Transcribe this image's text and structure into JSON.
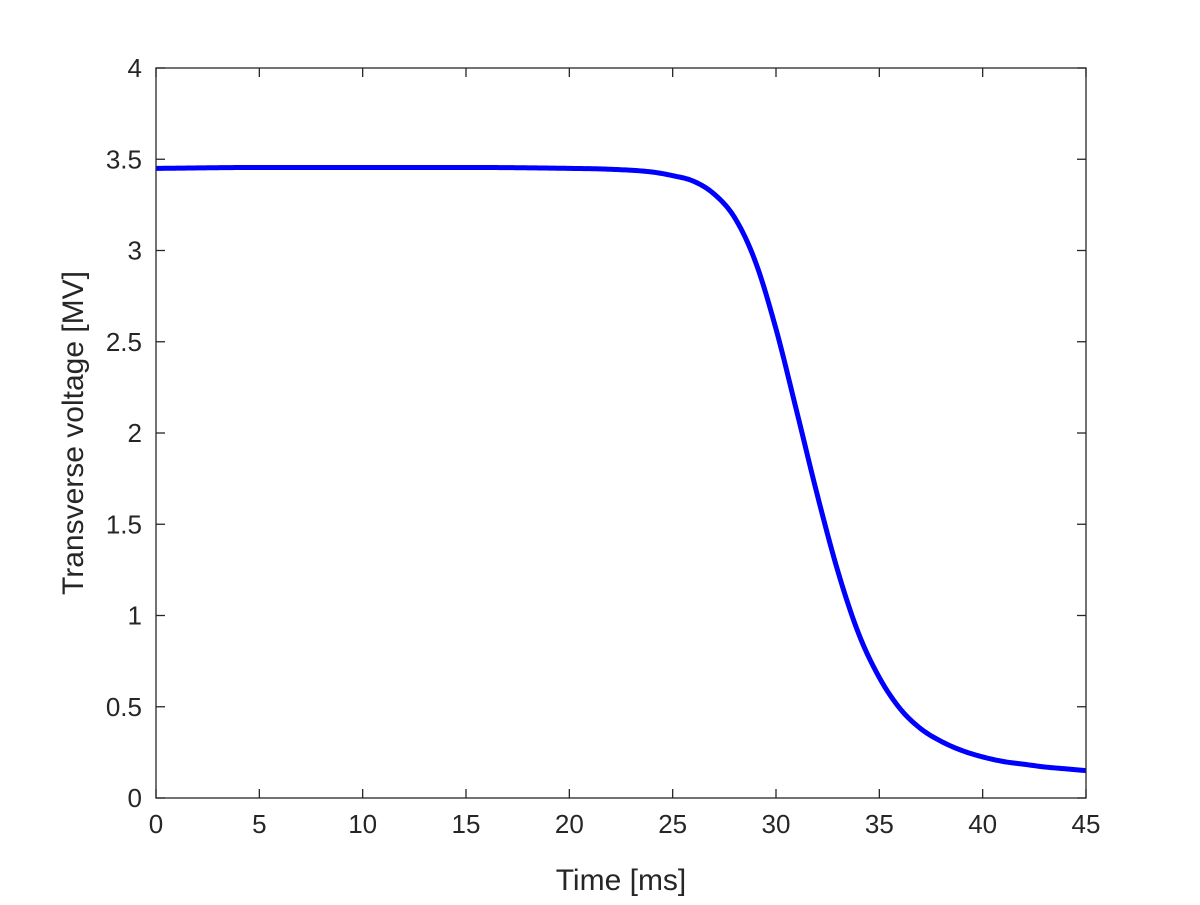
{
  "chart_data": {
    "type": "line",
    "title": "",
    "xlabel": "Time [ms]",
    "ylabel": "Transverse voltage [MV]",
    "xlim": [
      0,
      45
    ],
    "ylim": [
      0,
      4
    ],
    "xticks": [
      0,
      5,
      10,
      15,
      20,
      25,
      30,
      35,
      40,
      45
    ],
    "yticks": [
      0,
      0.5,
      1,
      1.5,
      2,
      2.5,
      3,
      3.5,
      4
    ],
    "xtick_labels": [
      "0",
      "5",
      "10",
      "15",
      "20",
      "25",
      "30",
      "35",
      "40",
      "45"
    ],
    "ytick_labels": [
      "0",
      "0.5",
      "1",
      "1.5",
      "2",
      "2.5",
      "3",
      "3.5",
      "4"
    ],
    "grid": false,
    "legend": "none",
    "series": [
      {
        "color": "#0000ff",
        "x": [
          0,
          5,
          10,
          15,
          20,
          22,
          24,
          25,
          26,
          27,
          28,
          29,
          30,
          31,
          32,
          33,
          34,
          35,
          36,
          37,
          38,
          39,
          40,
          41,
          42,
          43,
          44,
          45
        ],
        "y": [
          3.45,
          3.455,
          3.455,
          3.455,
          3.45,
          3.445,
          3.43,
          3.41,
          3.38,
          3.31,
          3.18,
          2.94,
          2.57,
          2.12,
          1.66,
          1.24,
          0.9,
          0.66,
          0.49,
          0.38,
          0.31,
          0.26,
          0.225,
          0.2,
          0.185,
          0.17,
          0.16,
          0.15
        ]
      }
    ]
  }
}
